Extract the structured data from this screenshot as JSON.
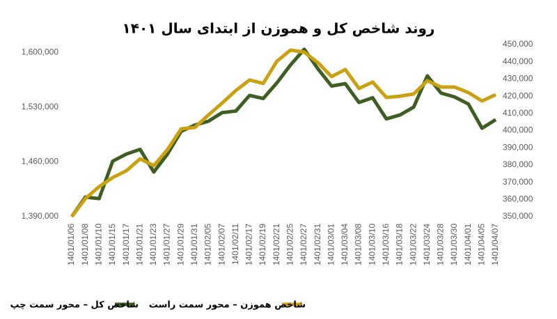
{
  "chart_data": {
    "type": "line",
    "title": "روند شاخص کل و هموزن از ابتدای سال ۱۴۰۱",
    "categories": [
      "1401/01/06",
      "1401/01/08",
      "1401/01/10",
      "1401/01/15",
      "1401/01/17",
      "1401/01/21",
      "1401/01/23",
      "1401/01/27",
      "1401/01/29",
      "1401/01/31",
      "1401/02/05",
      "1401/02/07",
      "1401/02/11",
      "1401/02/17",
      "1401/02/19",
      "1401/02/21",
      "1401/02/25",
      "1401/02/27",
      "1401/02/31",
      "1401/03/01",
      "1401/03/04",
      "1401/03/08",
      "1401/03/10",
      "1401/03/16",
      "1401/03/18",
      "1401/03/22",
      "1401/03/24",
      "1401/03/28",
      "1401/03/30",
      "1401/04/01",
      "1401/04/05",
      "1401/04/07"
    ],
    "series": [
      {
        "name": "شاخص کل – محور سمت چپ",
        "color": "#3f5e24",
        "axis": "y",
        "values": [
          1390000,
          1415000,
          1413000,
          1461000,
          1470000,
          1476000,
          1447000,
          1470000,
          1499000,
          1507000,
          1512000,
          1523000,
          1525000,
          1545000,
          1541000,
          1561000,
          1584000,
          1604000,
          1579000,
          1557000,
          1560000,
          1536000,
          1542000,
          1515000,
          1520000,
          1530000,
          1570000,
          1548000,
          1543000,
          1534000,
          1503000,
          1514000
        ]
      },
      {
        "name": "شاخص هموزن – محور سمت راست",
        "color": "#c9a112",
        "axis": "y2",
        "values": [
          350000,
          360500,
          367400,
          372700,
          376700,
          383600,
          379600,
          388900,
          401000,
          401800,
          409100,
          416000,
          423300,
          429400,
          427400,
          440300,
          446800,
          445600,
          439500,
          431400,
          435500,
          424500,
          428200,
          419300,
          420000,
          421300,
          429000,
          425300,
          425300,
          422100,
          417200,
          420900
        ]
      }
    ],
    "ylim": [
      1390000,
      1610000
    ],
    "yticks": [
      {
        "value": 1390000,
        "label": "1,390,000"
      },
      {
        "value": 1460000,
        "label": "1,460,000"
      },
      {
        "value": 1530000,
        "label": "1,530,000"
      },
      {
        "value": 1600000,
        "label": "1,600,000"
      }
    ],
    "y2lim": [
      350000,
      450000
    ],
    "y2ticks": [
      {
        "value": 350000,
        "label": "350,000"
      },
      {
        "value": 360000,
        "label": "360,000"
      },
      {
        "value": 370000,
        "label": "370,000"
      },
      {
        "value": 380000,
        "label": "380,000"
      },
      {
        "value": 390000,
        "label": "390,000"
      },
      {
        "value": 400000,
        "label": "400,000"
      },
      {
        "value": 410000,
        "label": "410,000"
      },
      {
        "value": 420000,
        "label": "420,000"
      },
      {
        "value": 430000,
        "label": "430,000"
      },
      {
        "value": 440000,
        "label": "440,000"
      },
      {
        "value": 450000,
        "label": "450,000"
      }
    ]
  }
}
